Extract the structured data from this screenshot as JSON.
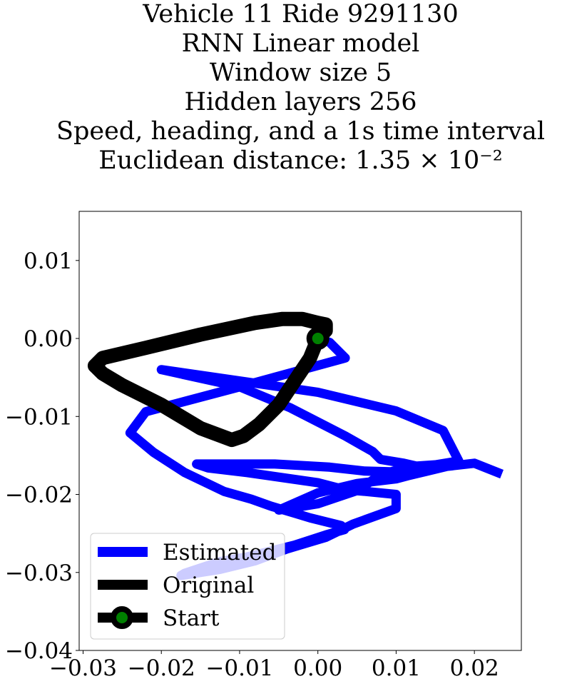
{
  "chart_data": {
    "type": "line",
    "title_lines": [
      "Vehicle 11 Ride 9291130",
      "RNN Linear model",
      "Window size 5",
      "Hidden layers 256",
      "Speed, heading, and a 1s time interval",
      "Euclidean distance: 1.35 × 10⁻²"
    ],
    "xlabel": "",
    "ylabel": "",
    "xlim": [
      -0.0305,
      0.026
    ],
    "ylim": [
      -0.04,
      0.0163
    ],
    "x_ticks": [
      -0.03,
      -0.02,
      -0.01,
      0.0,
      0.01,
      0.02
    ],
    "x_tick_labels": [
      "−0.03",
      "−0.02",
      "−0.01",
      "0.00",
      "0.01",
      "0.02"
    ],
    "y_ticks": [
      0.01,
      0.0,
      -0.01,
      -0.02,
      -0.03,
      -0.04
    ],
    "y_tick_labels": [
      "0.01",
      "0.00",
      "−0.01",
      "−0.02",
      "−0.03",
      "−0.04"
    ],
    "grid": false,
    "legend_placement": "lower-left",
    "series": [
      {
        "name": "Estimated",
        "color": "#0000ff",
        "x": [
          0.0,
          0.0015,
          0.0035,
          -0.01,
          -0.022,
          -0.024,
          -0.021,
          -0.017,
          -0.012,
          -0.0085,
          -0.006,
          -0.003,
          -0.001,
          0.003,
          0.0034,
          0.001,
          -0.003,
          -0.009,
          -0.0125,
          -0.017,
          -0.0175,
          -0.0125,
          -0.008,
          -0.004,
          0.001,
          0.0045,
          0.01,
          0.01,
          0.006,
          0.0035,
          0.0,
          -0.009,
          -0.014,
          -0.0155,
          -0.0055,
          0.0015,
          0.006,
          0.013,
          0.0145,
          0.011,
          0.008,
          0.007,
          0.0035,
          -0.0035,
          -0.01,
          -0.02,
          0.0,
          0.01,
          0.016,
          0.018,
          0.015,
          0.012,
          0.011,
          0.008,
          0.005,
          0.0,
          -0.005,
          0.0,
          0.005,
          0.01,
          0.0115,
          0.014,
          0.0165,
          0.02,
          0.0235
        ],
        "y": [
          0.0,
          -0.0005,
          -0.0025,
          -0.0062,
          -0.0094,
          -0.0121,
          -0.0146,
          -0.0172,
          -0.0196,
          -0.0206,
          -0.0215,
          -0.0224,
          -0.023,
          -0.024,
          -0.0245,
          -0.0252,
          -0.0265,
          -0.028,
          -0.0286,
          -0.0301,
          -0.0304,
          -0.0296,
          -0.0285,
          -0.027,
          -0.0255,
          -0.0238,
          -0.0218,
          -0.02,
          -0.0196,
          -0.0194,
          -0.0185,
          -0.0172,
          -0.0166,
          -0.0161,
          -0.0161,
          -0.0165,
          -0.017,
          -0.0172,
          -0.0168,
          -0.016,
          -0.0155,
          -0.0145,
          -0.0125,
          -0.0089,
          -0.0062,
          -0.004,
          -0.0069,
          -0.0093,
          -0.0118,
          -0.0157,
          -0.0162,
          -0.0164,
          -0.0166,
          -0.0175,
          -0.0195,
          -0.0212,
          -0.022,
          -0.0198,
          -0.0186,
          -0.018,
          -0.0176,
          -0.017,
          -0.0164,
          -0.016,
          -0.0174
        ]
      },
      {
        "name": "Original",
        "color": "#000000",
        "x": [
          0.0,
          0.001,
          0.001,
          0.0,
          -0.002,
          -0.0045,
          -0.008,
          -0.015,
          -0.022,
          -0.0275,
          -0.0285,
          -0.0275,
          -0.025,
          -0.02,
          -0.015,
          -0.011,
          -0.0095,
          -0.0075,
          -0.005,
          -0.003,
          -0.001,
          0.0
        ],
        "y": [
          0.0,
          0.001,
          0.0018,
          0.002,
          0.0025,
          0.0025,
          0.002,
          0.0005,
          -0.0012,
          -0.0025,
          -0.0035,
          -0.0045,
          -0.006,
          -0.0085,
          -0.0115,
          -0.013,
          -0.0125,
          -0.011,
          -0.0085,
          -0.0055,
          -0.0025,
          0.0
        ]
      }
    ],
    "start_marker": {
      "name": "Start",
      "x": 0.0,
      "y": 0.0,
      "marker_color": "#008000",
      "edge_color": "#000000"
    }
  }
}
